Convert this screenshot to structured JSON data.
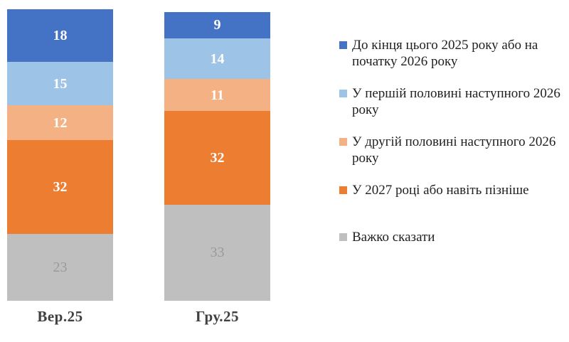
{
  "chart_data": {
    "type": "bar",
    "stacked": true,
    "orientation": "vertical",
    "legend_position": "right",
    "grid": false,
    "categories": [
      "Вер.25",
      "Гру.25"
    ],
    "series": [
      {
        "name": "До кінця цього 2025 року або на початку 2026 року",
        "color": "#4472C4",
        "label_color": "#ffffff",
        "label_bold": true,
        "values": [
          18,
          9
        ]
      },
      {
        "name": "У першій половині наступного 2026 року",
        "color": "#9DC3E6",
        "label_color": "#ffffff",
        "label_bold": true,
        "values": [
          15,
          14
        ]
      },
      {
        "name": "У другій половині наступного 2026 року",
        "color": "#F4B183",
        "label_color": "#ffffff",
        "label_bold": true,
        "values": [
          12,
          11
        ]
      },
      {
        "name": "У 2027 році або навіть пізніше",
        "color": "#ED7D31",
        "label_color": "#ffffff",
        "label_bold": true,
        "values": [
          32,
          32
        ]
      },
      {
        "name": "Важко сказати",
        "color": "#BFBFBF",
        "label_color": "#9a9a9a",
        "label_bold": false,
        "values": [
          23,
          33
        ]
      }
    ],
    "category_label_color": "#404040",
    "background_color": "#ffffff"
  }
}
